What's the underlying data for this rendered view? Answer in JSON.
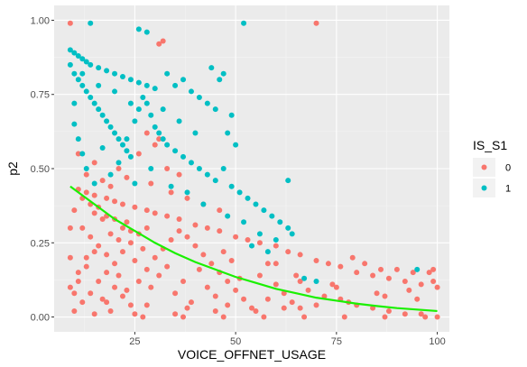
{
  "chart_data": {
    "type": "scatter",
    "xlabel": "VOICE_OFFNET_USAGE",
    "ylabel": "p2",
    "xlim": [
      5,
      103
    ],
    "ylim": [
      -0.05,
      1.05
    ],
    "x_ticks": [
      25,
      50,
      75,
      100
    ],
    "x_tick_labels": [
      "25",
      "50",
      "75",
      "100"
    ],
    "y_ticks": [
      0.0,
      0.25,
      0.5,
      0.75,
      1.0
    ],
    "y_tick_labels": [
      "0.00",
      "0.25",
      "0.50",
      "0.75",
      "1.00"
    ],
    "grid": true,
    "legend": {
      "title": "IS_S1",
      "position": "right",
      "entries": [
        {
          "label": "0",
          "color": "#F8766D"
        },
        {
          "label": "1",
          "color": "#00BFC4"
        }
      ]
    },
    "series": [
      {
        "name": "0",
        "color": "#F8766D",
        "points": [
          [
            9,
            0.99
          ],
          [
            31,
            0.92
          ],
          [
            32,
            0.93
          ],
          [
            70,
            0.99
          ],
          [
            11,
            0.43
          ],
          [
            13,
            0.42
          ],
          [
            15,
            0.41
          ],
          [
            18,
            0.4
          ],
          [
            20,
            0.39
          ],
          [
            22,
            0.38
          ],
          [
            25,
            0.37
          ],
          [
            28,
            0.36
          ],
          [
            30,
            0.35
          ],
          [
            33,
            0.34
          ],
          [
            36,
            0.33
          ],
          [
            40,
            0.31
          ],
          [
            43,
            0.3
          ],
          [
            46,
            0.29
          ],
          [
            50,
            0.27
          ],
          [
            53,
            0.26
          ],
          [
            56,
            0.25
          ],
          [
            60,
            0.24
          ],
          [
            63,
            0.22
          ],
          [
            66,
            0.21
          ],
          [
            70,
            0.19
          ],
          [
            73,
            0.18
          ],
          [
            76,
            0.17
          ],
          [
            80,
            0.15
          ],
          [
            84,
            0.14
          ],
          [
            88,
            0.13
          ],
          [
            92,
            0.12
          ],
          [
            96,
            0.11
          ],
          [
            99,
            0.16
          ],
          [
            98,
            0.15
          ],
          [
            79,
            0.2
          ],
          [
            82,
            0.18
          ],
          [
            86,
            0.16
          ],
          [
            90,
            0.16
          ],
          [
            94,
            0.15
          ],
          [
            99,
            0.12
          ],
          [
            100,
            0.1
          ],
          [
            93,
            0.09
          ],
          [
            87,
            0.07
          ],
          [
            78,
            0.05
          ],
          [
            70,
            0.04
          ],
          [
            62,
            0.03
          ],
          [
            55,
            0.02
          ],
          [
            45,
            0.02
          ],
          [
            35,
            0.01
          ],
          [
            25,
            0.01
          ],
          [
            15,
            0.01
          ],
          [
            10,
            0.02
          ],
          [
            12,
            0.05
          ],
          [
            14,
            0.08
          ],
          [
            16,
            0.12
          ],
          [
            18,
            0.15
          ],
          [
            20,
            0.18
          ],
          [
            22,
            0.22
          ],
          [
            24,
            0.25
          ],
          [
            26,
            0.28
          ],
          [
            28,
            0.3
          ],
          [
            12,
            0.3
          ],
          [
            14,
            0.27
          ],
          [
            16,
            0.24
          ],
          [
            18,
            0.21
          ],
          [
            20,
            0.1
          ],
          [
            22,
            0.07
          ],
          [
            24,
            0.04
          ],
          [
            26,
            0.12
          ],
          [
            28,
            0.16
          ],
          [
            30,
            0.2
          ],
          [
            32,
            0.23
          ],
          [
            34,
            0.26
          ],
          [
            36,
            0.29
          ],
          [
            38,
            0.27
          ],
          [
            40,
            0.24
          ],
          [
            42,
            0.21
          ],
          [
            44,
            0.18
          ],
          [
            46,
            0.15
          ],
          [
            48,
            0.12
          ],
          [
            50,
            0.09
          ],
          [
            52,
            0.06
          ],
          [
            54,
            0.03
          ],
          [
            56,
            0.14
          ],
          [
            58,
            0.18
          ],
          [
            60,
            0.11
          ],
          [
            62,
            0.08
          ],
          [
            64,
            0.05
          ],
          [
            66,
            0.12
          ],
          [
            68,
            0.09
          ],
          [
            72,
            0.07
          ],
          [
            74,
            0.11
          ],
          [
            76,
            0.06
          ],
          [
            80,
            0.04
          ],
          [
            84,
            0.03
          ],
          [
            88,
            0.02
          ],
          [
            92,
            0.01
          ],
          [
            96,
            0.01
          ],
          [
            100,
            0.0
          ],
          [
            11,
            0.15
          ],
          [
            13,
            0.2
          ],
          [
            15,
            0.35
          ],
          [
            17,
            0.33
          ],
          [
            19,
            0.28
          ],
          [
            21,
            0.26
          ],
          [
            23,
            0.32
          ],
          [
            25,
            0.19
          ],
          [
            27,
            0.23
          ],
          [
            29,
            0.1
          ],
          [
            31,
            0.14
          ],
          [
            33,
            0.17
          ],
          [
            35,
            0.08
          ],
          [
            37,
            0.12
          ],
          [
            39,
            0.05
          ],
          [
            41,
            0.16
          ],
          [
            43,
            0.1
          ],
          [
            45,
            0.07
          ],
          [
            47,
            0.22
          ],
          [
            49,
            0.19
          ],
          [
            51,
            0.13
          ],
          [
            10,
            0.36
          ],
          [
            12,
            0.4
          ],
          [
            14,
            0.38
          ],
          [
            16,
            0.37
          ],
          [
            18,
            0.34
          ],
          [
            20,
            0.33
          ],
          [
            22,
            0.3
          ],
          [
            24,
            0.29
          ],
          [
            11,
            0.55
          ],
          [
            13,
            0.48
          ],
          [
            15,
            0.52
          ],
          [
            17,
            0.46
          ],
          [
            19,
            0.44
          ],
          [
            21,
            0.5
          ],
          [
            23,
            0.47
          ],
          [
            26,
            0.55
          ],
          [
            29,
            0.45
          ],
          [
            31,
            0.6
          ],
          [
            33,
            0.5
          ],
          [
            36,
            0.48
          ],
          [
            28,
            0.62
          ],
          [
            30,
            0.58
          ],
          [
            34,
            0.42
          ],
          [
            38,
            0.4
          ],
          [
            42,
            0.38
          ],
          [
            46,
            0.36
          ],
          [
            27,
            0.0
          ],
          [
            37,
            0.0
          ],
          [
            47,
            0.0
          ],
          [
            57,
            0.0
          ],
          [
            67,
            0.0
          ],
          [
            77,
            0.0
          ],
          [
            87,
            0.0
          ],
          [
            97,
            0.0
          ],
          [
            60,
            0.18
          ],
          [
            65,
            0.14
          ],
          [
            75,
            0.1
          ],
          [
            85,
            0.08
          ],
          [
            95,
            0.06
          ],
          [
            66,
            0.03
          ],
          [
            58,
            0.06
          ],
          [
            48,
            0.04
          ],
          [
            38,
            0.03
          ],
          [
            28,
            0.04
          ],
          [
            18,
            0.05
          ],
          [
            9,
            0.1
          ],
          [
            9,
            0.2
          ],
          [
            9,
            0.3
          ],
          [
            10,
            0.08
          ],
          [
            11,
            0.12
          ],
          [
            13,
            0.17
          ],
          [
            15,
            0.22
          ],
          [
            17,
            0.06
          ],
          [
            19,
            0.02
          ],
          [
            21,
            0.14
          ],
          [
            23,
            0.09
          ]
        ]
      },
      {
        "name": "1",
        "color": "#00BFC4",
        "points": [
          [
            14,
            0.99
          ],
          [
            52,
            0.99
          ],
          [
            26,
            0.97
          ],
          [
            28,
            0.96
          ],
          [
            9,
            0.9
          ],
          [
            10,
            0.89
          ],
          [
            11,
            0.88
          ],
          [
            12,
            0.87
          ],
          [
            13,
            0.86
          ],
          [
            14,
            0.85
          ],
          [
            16,
            0.84
          ],
          [
            18,
            0.83
          ],
          [
            20,
            0.82
          ],
          [
            22,
            0.81
          ],
          [
            24,
            0.8
          ],
          [
            26,
            0.79
          ],
          [
            28,
            0.78
          ],
          [
            30,
            0.77
          ],
          [
            9,
            0.85
          ],
          [
            10,
            0.82
          ],
          [
            11,
            0.8
          ],
          [
            12,
            0.78
          ],
          [
            13,
            0.76
          ],
          [
            14,
            0.74
          ],
          [
            15,
            0.72
          ],
          [
            16,
            0.7
          ],
          [
            17,
            0.68
          ],
          [
            18,
            0.66
          ],
          [
            19,
            0.64
          ],
          [
            20,
            0.62
          ],
          [
            21,
            0.6
          ],
          [
            22,
            0.58
          ],
          [
            23,
            0.56
          ],
          [
            24,
            0.54
          ],
          [
            25,
            0.66
          ],
          [
            26,
            0.7
          ],
          [
            27,
            0.74
          ],
          [
            28,
            0.72
          ],
          [
            29,
            0.68
          ],
          [
            30,
            0.64
          ],
          [
            31,
            0.62
          ],
          [
            32,
            0.6
          ],
          [
            33,
            0.58
          ],
          [
            35,
            0.56
          ],
          [
            37,
            0.54
          ],
          [
            39,
            0.52
          ],
          [
            41,
            0.5
          ],
          [
            43,
            0.48
          ],
          [
            45,
            0.46
          ],
          [
            47,
            0.5
          ],
          [
            49,
            0.44
          ],
          [
            51,
            0.42
          ],
          [
            53,
            0.4
          ],
          [
            55,
            0.38
          ],
          [
            57,
            0.36
          ],
          [
            59,
            0.34
          ],
          [
            61,
            0.32
          ],
          [
            63,
            0.3
          ],
          [
            33,
            0.82
          ],
          [
            35,
            0.78
          ],
          [
            37,
            0.8
          ],
          [
            39,
            0.76
          ],
          [
            41,
            0.74
          ],
          [
            43,
            0.72
          ],
          [
            45,
            0.7
          ],
          [
            47,
            0.82
          ],
          [
            49,
            0.68
          ],
          [
            44,
            0.84
          ],
          [
            46,
            0.8
          ],
          [
            10,
            0.72
          ],
          [
            10,
            0.65
          ],
          [
            11,
            0.6
          ],
          [
            12,
            0.55
          ],
          [
            13,
            0.5
          ],
          [
            15,
            0.45
          ],
          [
            17,
            0.57
          ],
          [
            19,
            0.48
          ],
          [
            21,
            0.52
          ],
          [
            23,
            0.6
          ],
          [
            25,
            0.45
          ],
          [
            29,
            0.5
          ],
          [
            34,
            0.44
          ],
          [
            38,
            0.42
          ],
          [
            42,
            0.38
          ],
          [
            48,
            0.34
          ],
          [
            52,
            0.32
          ],
          [
            56,
            0.28
          ],
          [
            60,
            0.26
          ],
          [
            63,
            0.46
          ],
          [
            48,
            0.62
          ],
          [
            50,
            0.58
          ],
          [
            40,
            0.62
          ],
          [
            36,
            0.66
          ],
          [
            32,
            0.7
          ],
          [
            24,
            0.72
          ],
          [
            20,
            0.76
          ],
          [
            16,
            0.78
          ],
          [
            12,
            0.82
          ],
          [
            95,
            0.16
          ],
          [
            67,
            0.13
          ],
          [
            70,
            0.12
          ],
          [
            64,
            0.28
          ],
          [
            58,
            0.22
          ],
          [
            54,
            0.24
          ]
        ]
      }
    ],
    "trend_line": {
      "color": "#1AF000",
      "x": [
        9,
        15,
        20,
        25,
        30,
        35,
        40,
        45,
        50,
        55,
        60,
        65,
        70,
        75,
        80,
        85,
        90,
        95,
        100
      ],
      "y": [
        0.44,
        0.38,
        0.33,
        0.29,
        0.25,
        0.215,
        0.185,
        0.16,
        0.135,
        0.115,
        0.095,
        0.08,
        0.065,
        0.055,
        0.045,
        0.037,
        0.03,
        0.025,
        0.02
      ]
    }
  }
}
